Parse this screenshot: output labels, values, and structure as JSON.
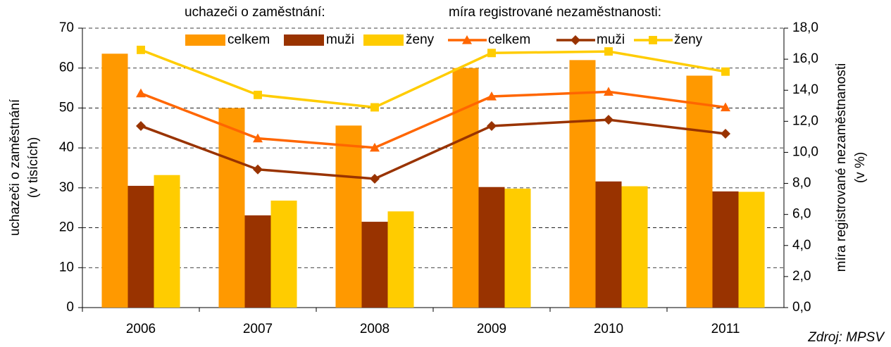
{
  "chart_data": {
    "type": "bar",
    "legend_headers": [
      "uchazeči o zaměstnání:",
      "míra registrované nezaměstnanosti:"
    ],
    "ylabel": [
      "uchazeči o zaměstnání",
      "(v tisících)"
    ],
    "y2label": [
      "míra registrované nezaměstnanosti",
      "(v %)"
    ],
    "source": "Zdroj: MPSV",
    "categories": [
      "2006",
      "2007",
      "2008",
      "2009",
      "2010",
      "2011"
    ],
    "series": [
      {
        "name": "celkem",
        "color": "#FF9900",
        "values": [
          63.6,
          50.0,
          45.6,
          60.0,
          62.0,
          58.1
        ]
      },
      {
        "name": "muži",
        "color": "#993300",
        "values": [
          30.5,
          23.1,
          21.5,
          30.2,
          31.6,
          29.1
        ]
      },
      {
        "name": "ženy",
        "color": "#FFCC00",
        "values": [
          33.2,
          26.8,
          24.1,
          29.8,
          30.4,
          29.0
        ]
      },
      {
        "name": "celkem",
        "type": "line",
        "axis": "y2",
        "marker": "triangle",
        "color": "#FF6600",
        "values": [
          13.8,
          10.9,
          10.3,
          13.6,
          13.9,
          12.9
        ]
      },
      {
        "name": "muži",
        "type": "line",
        "axis": "y2",
        "marker": "diamond",
        "color": "#993300",
        "values": [
          11.7,
          8.9,
          8.3,
          11.7,
          12.1,
          11.2
        ]
      },
      {
        "name": "ženy",
        "type": "line",
        "axis": "y2",
        "marker": "square",
        "color": "#FFCC00",
        "values": [
          16.6,
          13.7,
          12.9,
          16.4,
          16.5,
          15.2
        ]
      }
    ],
    "ylim": [
      0,
      70
    ],
    "yticks": [
      0,
      10,
      20,
      30,
      40,
      50,
      60,
      70
    ],
    "y2lim": [
      0,
      18
    ],
    "y2ticks": [
      {
        "value": 0,
        "label": "0,0"
      },
      {
        "value": 2,
        "label": "2,0"
      },
      {
        "value": 4,
        "label": "4,0"
      },
      {
        "value": 6,
        "label": "6,0"
      },
      {
        "value": 8,
        "label": "8,0"
      },
      {
        "value": 10,
        "label": "10,0"
      },
      {
        "value": 12,
        "label": "12,0"
      },
      {
        "value": 14,
        "label": "14,0"
      },
      {
        "value": 16,
        "label": "16,0"
      },
      {
        "value": 18,
        "label": "18,0"
      }
    ],
    "grid": true
  }
}
